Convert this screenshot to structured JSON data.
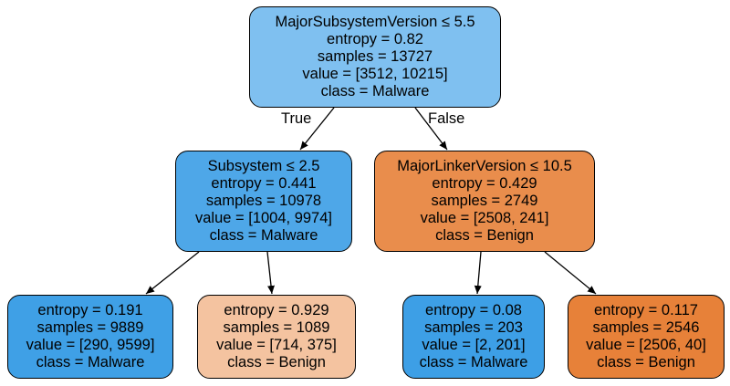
{
  "nodes": {
    "root": {
      "lines": [
        "MajorSubsystemVersion ≤ 5.5",
        "entropy = 0.82",
        "samples = 13727",
        "value = [3512, 10215]",
        "class = Malware"
      ],
      "color": "#7fc0f0"
    },
    "left": {
      "lines": [
        "Subsystem ≤ 2.5",
        "entropy = 0.441",
        "samples = 10978",
        "value = [1004, 9974]",
        "class = Malware"
      ],
      "color": "#4ea7e8"
    },
    "right": {
      "lines": [
        "MajorLinkerVersion ≤ 10.5",
        "entropy = 0.429",
        "samples = 2749",
        "value = [2508, 241]",
        "class = Benign"
      ],
      "color": "#e98d4c"
    },
    "ll": {
      "lines": [
        "entropy = 0.191",
        "samples = 9889",
        "value = [290, 9599]",
        "class = Malware"
      ],
      "color": "#3fa0e6"
    },
    "lr": {
      "lines": [
        "entropy = 0.929",
        "samples = 1089",
        "value = [714, 375]",
        "class = Benign"
      ],
      "color": "#f4c3a0"
    },
    "rl": {
      "lines": [
        "entropy = 0.08",
        "samples = 203",
        "value = [2, 201]",
        "class = Malware"
      ],
      "color": "#3d9fe6"
    },
    "rr": {
      "lines": [
        "entropy = 0.117",
        "samples = 2546",
        "value = [2506, 40]",
        "class = Benign"
      ],
      "color": "#e78139"
    }
  },
  "edge_labels": {
    "true": "True",
    "false": "False"
  }
}
